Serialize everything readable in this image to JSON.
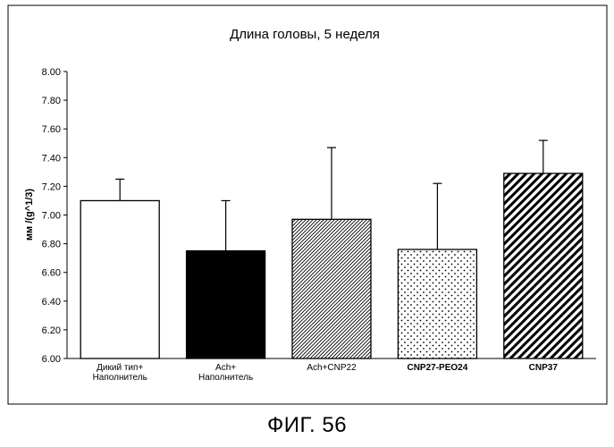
{
  "chart_data": {
    "type": "bar",
    "title": "Длина головы, 5 неделя",
    "xlabel": "",
    "ylabel": "мм /(g^1/3)",
    "ylim": [
      6.0,
      8.0
    ],
    "yticks": [
      "6.00",
      "6.20",
      "6.40",
      "6.60",
      "6.80",
      "7.00",
      "7.20",
      "7.40",
      "7.60",
      "7.80",
      "8.00"
    ],
    "grid": false,
    "categories": [
      [
        "Дикий тип+",
        "Наполнитель"
      ],
      [
        "Ach+",
        "Наполнитель"
      ],
      [
        "Ach+CNP22"
      ],
      [
        "CNP27-PEO24"
      ],
      [
        "CNP37"
      ]
    ],
    "values": [
      7.1,
      6.75,
      6.97,
      6.76,
      7.29
    ],
    "errors": [
      0.15,
      0.35,
      0.5,
      0.46,
      0.23
    ],
    "fills": [
      "white",
      "black",
      "fine-diagonal-hatch",
      "dotted",
      "bold-diagonal-hatch"
    ]
  },
  "figure": {
    "caption": "ФИГ. 56"
  }
}
